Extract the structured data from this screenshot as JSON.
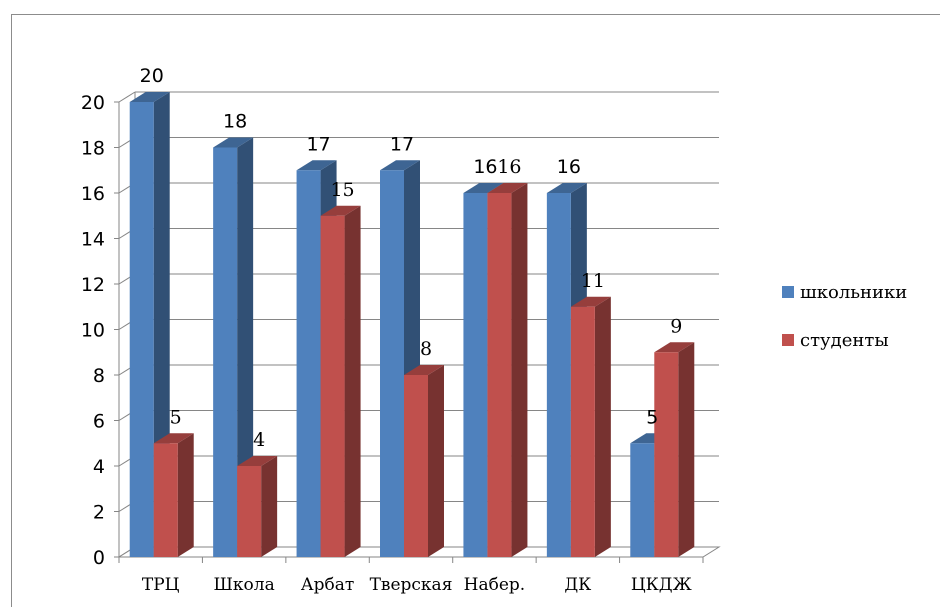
{
  "chart_data": {
    "type": "bar",
    "title": "",
    "xlabel": "",
    "ylabel": "",
    "ylim": [
      0,
      20
    ],
    "y_ticks": [
      0,
      2,
      4,
      6,
      8,
      10,
      12,
      14,
      16,
      18,
      20
    ],
    "categories": [
      "ТРЦ",
      "Школа",
      "Арбат",
      "Тверская",
      "Набер.",
      "ДК",
      "ЦКДЖ"
    ],
    "series": [
      {
        "name": "школьники",
        "values": [
          20,
          18,
          17,
          17,
          16,
          16,
          5
        ],
        "color": "#4f81bd"
      },
      {
        "name": "студенты",
        "values": [
          5,
          4,
          15,
          8,
          16,
          11,
          9
        ],
        "color": "#c0504d"
      }
    ],
    "grid": true,
    "legend_position": "right",
    "style": "3d-clustered-column"
  }
}
